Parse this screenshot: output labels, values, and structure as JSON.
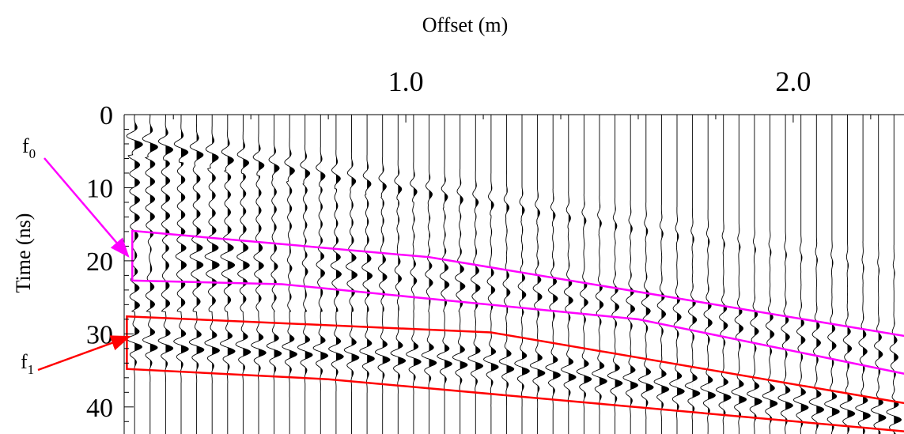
{
  "chart_data": {
    "type": "wiggle",
    "xlabel": "Offset (m)",
    "ylabel": "Time (ns)",
    "xlim": [
      0.273,
      2.286
    ],
    "ylim": [
      0,
      43.7
    ],
    "y_inverted": true,
    "xticks": [
      {
        "value": 1,
        "label": "1.0"
      },
      {
        "value": 2,
        "label": "2.0"
      }
    ],
    "xminorticks": [
      0.4,
      0.6,
      0.8,
      1.2,
      1.4,
      1.6,
      1.8,
      2.2
    ],
    "yticks": [
      0,
      10,
      20,
      30,
      40
    ],
    "yminorticks": [
      2,
      4,
      6,
      8,
      12,
      14,
      16,
      18,
      22,
      24,
      26,
      28,
      32,
      34,
      36,
      38,
      42
    ],
    "traces": {
      "color": "#000000",
      "x": [
        0.3,
        0.34,
        0.38,
        0.42,
        0.46,
        0.5,
        0.54,
        0.58,
        0.62,
        0.66,
        0.7,
        0.74,
        0.78,
        0.82,
        0.86,
        0.9,
        0.94,
        0.98,
        1.02,
        1.06,
        1.1,
        1.14,
        1.18,
        1.22,
        1.26,
        1.3,
        1.34,
        1.38,
        1.42,
        1.46,
        1.5,
        1.54,
        1.58,
        1.62,
        1.66,
        1.7,
        1.74,
        1.78,
        1.82,
        1.86,
        1.9,
        1.94,
        1.98,
        2.02,
        2.06,
        2.1,
        2.14,
        2.18,
        2.22,
        2.26
      ]
    },
    "windows": [
      {
        "color": "#ff00ff",
        "top": [
          [
            0.294,
            15.9
          ],
          [
            1.06,
            19.5
          ],
          [
            2.3,
            30.4
          ]
        ],
        "bottom": [
          [
            0.294,
            22.7
          ],
          [
            0.68,
            23.2
          ],
          [
            1.6,
            28.0
          ],
          [
            2.3,
            35.6
          ]
        ]
      },
      {
        "color": "#ff0000",
        "top": [
          [
            0.28,
            27.6
          ],
          [
            1.22,
            29.8
          ],
          [
            2.3,
            39.6
          ]
        ],
        "bottom": [
          [
            0.28,
            34.8
          ],
          [
            0.8,
            36.2
          ],
          [
            2.3,
            43.4
          ]
        ]
      }
    ],
    "annotations": [
      {
        "text": "f",
        "sub": "0",
        "color": "#ff00ff"
      },
      {
        "text": "f",
        "sub": "1",
        "color": "#ff0000"
      }
    ]
  }
}
